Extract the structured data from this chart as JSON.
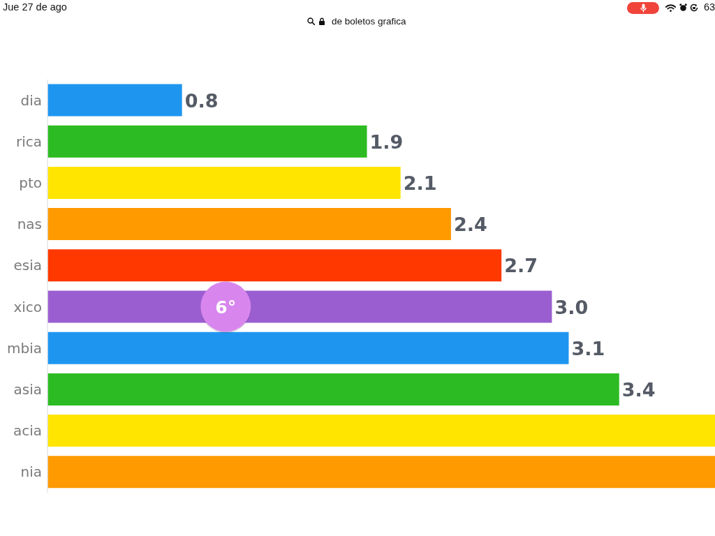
{
  "chart_data": {
    "type": "bar",
    "orientation": "horizontal",
    "categories": [
      "dia",
      "rica",
      "pto",
      "nas",
      "esia",
      "xico",
      "mbia",
      "asia",
      "acia",
      "nia"
    ],
    "values": [
      0.8,
      1.9,
      2.1,
      2.4,
      2.7,
      3.0,
      3.1,
      3.4,
      3.97,
      3.97
    ],
    "colors": [
      "#1e96f0",
      "#2cbb22",
      "#ffe500",
      "#ff9a00",
      "#ff3800",
      "#9b5ed0",
      "#1e96f0",
      "#2cbb22",
      "#ffe500",
      "#ff9a00"
    ],
    "xlim": [
      0,
      3.97
    ],
    "value_labels": [
      "0.8",
      "1.9",
      "2.1",
      "2.4",
      "2.7",
      "3.0",
      "3.1",
      "3.4",
      null,
      null
    ],
    "annotations": [
      "Jue 27 de ago",
      "de boletos grafica",
      "63",
      {
        "text": "6°",
        "x": 1.06,
        "y": "xico"
      }
    ]
  }
}
